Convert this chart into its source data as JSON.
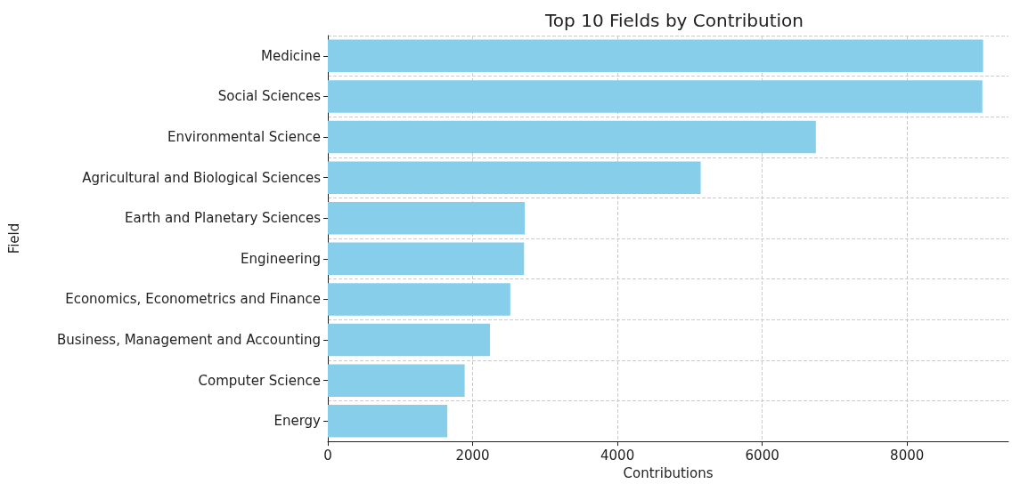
{
  "chart_data": {
    "type": "bar",
    "orientation": "horizontal",
    "title": "Top 10 Fields by Contribution",
    "xlabel": "Contributions",
    "ylabel": "Field",
    "categories": [
      "Medicine",
      "Social Sciences",
      "Environmental Science",
      "Agricultural and Biological Sciences",
      "Earth and Planetary Sciences",
      "Engineering",
      "Economics, Econometrics and Finance",
      "Business, Management and Accounting",
      "Computer Science",
      "Energy"
    ],
    "values": [
      9050,
      9040,
      6740,
      5150,
      2720,
      2710,
      2520,
      2240,
      1890,
      1650
    ],
    "color": "#87ceeb",
    "xlim": [
      0,
      9400
    ],
    "xticks": [
      0,
      2000,
      4000,
      6000,
      8000
    ],
    "grid": true
  }
}
